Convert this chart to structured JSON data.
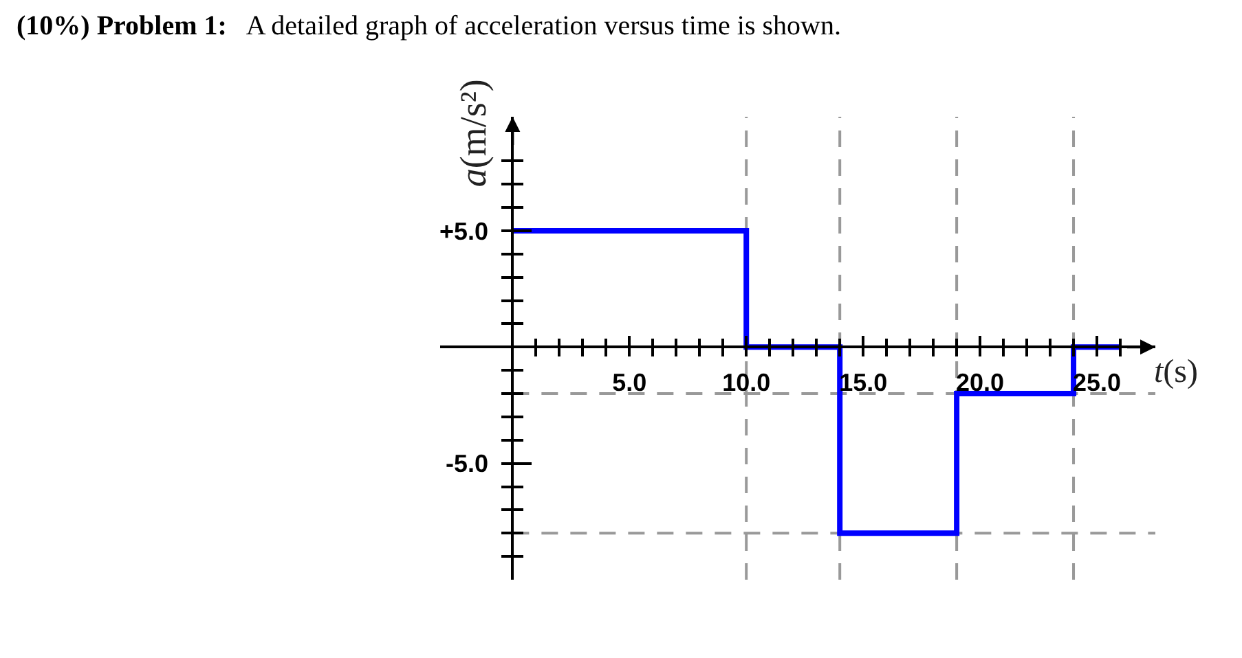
{
  "chart_data": {
    "type": "step",
    "title": "(10%) Problem 1: A detailed graph of acceleration versus time is shown.",
    "xlabel": "t(s)",
    "ylabel": "a(m/s²)",
    "x": [
      0,
      10,
      14,
      19,
      24,
      26
    ],
    "series": [
      {
        "color": "#0000ff",
        "values": [
          5,
          0,
          -8,
          -2,
          0,
          0
        ]
      }
    ],
    "xlim": [
      -3.1,
      27.5
    ],
    "ylim": [
      -10,
      9.9
    ],
    "xticks": [
      {
        "value": 1,
        "label": null
      },
      {
        "value": 2,
        "label": null
      },
      {
        "value": 3,
        "label": null
      },
      {
        "value": 4,
        "label": null
      },
      {
        "value": 5,
        "label": "5.0"
      },
      {
        "value": 6,
        "label": null
      },
      {
        "value": 7,
        "label": null
      },
      {
        "value": 8,
        "label": null
      },
      {
        "value": 9,
        "label": null
      },
      {
        "value": 10,
        "label": "10.0"
      },
      {
        "value": 11,
        "label": null
      },
      {
        "value": 12,
        "label": null
      },
      {
        "value": 13,
        "label": null
      },
      {
        "value": 14,
        "label": null
      },
      {
        "value": 15,
        "label": "15.0"
      },
      {
        "value": 16,
        "label": null
      },
      {
        "value": 17,
        "label": null
      },
      {
        "value": 18,
        "label": null
      },
      {
        "value": 19,
        "label": null
      },
      {
        "value": 20,
        "label": "20.0"
      },
      {
        "value": 21,
        "label": null
      },
      {
        "value": 22,
        "label": null
      },
      {
        "value": 23,
        "label": null
      },
      {
        "value": 24,
        "label": null
      },
      {
        "value": 25,
        "label": "25.0"
      },
      {
        "value": 26,
        "label": null
      }
    ],
    "yticks": [
      {
        "value": -9,
        "label": null
      },
      {
        "value": -8,
        "label": null
      },
      {
        "value": -7,
        "label": null
      },
      {
        "value": -6,
        "label": null
      },
      {
        "value": -5,
        "label": "-5.0"
      },
      {
        "value": -4,
        "label": null
      },
      {
        "value": -3,
        "label": null
      },
      {
        "value": -2,
        "label": null
      },
      {
        "value": -1,
        "label": null
      },
      {
        "value": 1,
        "label": null
      },
      {
        "value": 2,
        "label": null
      },
      {
        "value": 3,
        "label": null
      },
      {
        "value": 4,
        "label": null
      },
      {
        "value": 5,
        "label": "+5.0"
      },
      {
        "value": 6,
        "label": null
      },
      {
        "value": 7,
        "label": null
      },
      {
        "value": 8,
        "label": null
      }
    ],
    "ref_lines": [
      {
        "axis": "x",
        "value": 10,
        "color": "#999999",
        "line_style": "dashed"
      },
      {
        "axis": "x",
        "value": 14,
        "color": "#999999",
        "line_style": "dashed"
      },
      {
        "axis": "x",
        "value": 19,
        "color": "#999999",
        "line_style": "dashed"
      },
      {
        "axis": "x",
        "value": 24,
        "color": "#999999",
        "line_style": "dashed"
      },
      {
        "axis": "y",
        "value": -2,
        "color": "#999999",
        "line_style": "dashed"
      },
      {
        "axis": "y",
        "value": -8,
        "color": "#999999",
        "line_style": "dashed"
      }
    ],
    "grid": false
  }
}
